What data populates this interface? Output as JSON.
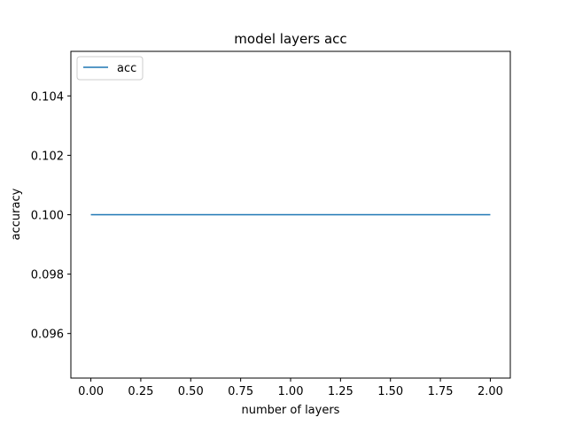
{
  "chart_data": {
    "type": "line",
    "title": "model layers acc",
    "xlabel": "number of layers",
    "ylabel": "accuracy",
    "xlim": [
      -0.1,
      2.1
    ],
    "ylim": [
      0.0945,
      0.1055
    ],
    "x_ticks": [
      0.0,
      0.25,
      0.5,
      0.75,
      1.0,
      1.25,
      1.5,
      1.75,
      2.0
    ],
    "x_tick_labels": [
      "0.00",
      "0.25",
      "0.50",
      "0.75",
      "1.00",
      "1.25",
      "1.50",
      "1.75",
      "2.00"
    ],
    "y_ticks": [
      0.096,
      0.098,
      0.1,
      0.102,
      0.104
    ],
    "y_tick_labels": [
      "0.096",
      "0.098",
      "0.100",
      "0.102",
      "0.104"
    ],
    "grid": false,
    "legend_position": "top-left",
    "series": [
      {
        "name": "acc",
        "color": "#1f77b4",
        "x": [
          0,
          1,
          2
        ],
        "y": [
          0.1,
          0.1,
          0.1
        ]
      }
    ]
  }
}
